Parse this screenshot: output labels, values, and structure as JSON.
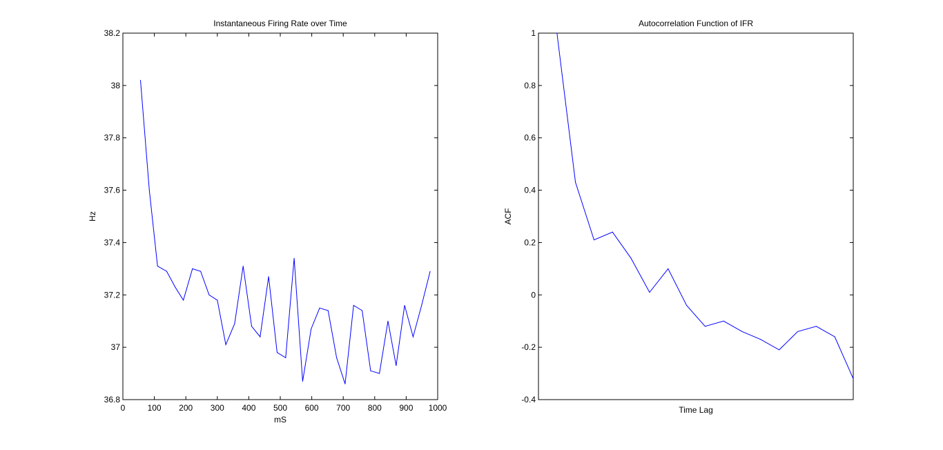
{
  "chart_data": [
    {
      "type": "line",
      "title": "Instantaneous Firing Rate over Time",
      "xlabel": "mS",
      "ylabel": "Hz",
      "xlim": [
        0,
        1000
      ],
      "ylim": [
        36.8,
        38.2
      ],
      "xticks": [
        0,
        100,
        200,
        300,
        400,
        500,
        600,
        700,
        800,
        900,
        1000
      ],
      "xtick_labels": [
        "0",
        "100",
        "200",
        "300",
        "400",
        "500",
        "600",
        "700",
        "800",
        "900",
        "1000"
      ],
      "yticks": [
        36.8,
        37,
        37.2,
        37.4,
        37.6,
        37.8,
        38,
        38.2
      ],
      "ytick_labels": [
        "36.8",
        "37",
        "37.2",
        "37.4",
        "37.6",
        "37.8",
        "38",
        "38.2"
      ],
      "grid": false,
      "line_color": "#0000ff",
      "x": [
        56,
        84,
        110,
        139,
        166,
        192,
        221,
        247,
        274,
        300,
        327,
        355,
        382,
        409,
        436,
        463,
        490,
        517,
        544,
        571,
        598,
        625,
        652,
        679,
        706,
        733,
        760,
        787,
        815,
        842,
        868,
        895,
        922,
        949,
        976
      ],
      "y": [
        38.02,
        37.6,
        37.31,
        37.29,
        37.23,
        37.18,
        37.3,
        37.29,
        37.2,
        37.18,
        37.01,
        37.09,
        37.31,
        37.08,
        37.04,
        37.27,
        36.98,
        36.96,
        37.34,
        36.87,
        37.07,
        37.15,
        37.14,
        36.96,
        36.86,
        37.16,
        37.14,
        36.91,
        36.9,
        37.1,
        36.93,
        37.16,
        37.04,
        37.16,
        37.29
      ]
    },
    {
      "type": "line",
      "title": "Autocorrelation Function of IFR",
      "xlabel": "Time Lag",
      "ylabel": "ACF",
      "xlim": [
        0,
        17
      ],
      "ylim": [
        -0.4,
        1
      ],
      "xticks": [],
      "xtick_labels": [],
      "yticks": [
        -0.4,
        -0.2,
        0,
        0.2,
        0.4,
        0.6,
        0.8,
        1
      ],
      "ytick_labels": [
        "-0.4",
        "-0.2",
        "0",
        "0.2",
        "0.4",
        "0.6",
        "0.8",
        "1"
      ],
      "grid": false,
      "line_color": "#0000ff",
      "x": [
        1,
        2,
        3,
        4,
        5,
        6,
        7,
        8,
        9,
        10,
        11,
        12,
        13,
        14,
        15,
        16,
        17
      ],
      "y": [
        1,
        0.43,
        0.21,
        0.24,
        0.14,
        0.01,
        0.1,
        -0.04,
        -0.12,
        -0.1,
        -0.14,
        -0.17,
        -0.21,
        -0.14,
        -0.12,
        -0.16,
        -0.32
      ]
    }
  ]
}
